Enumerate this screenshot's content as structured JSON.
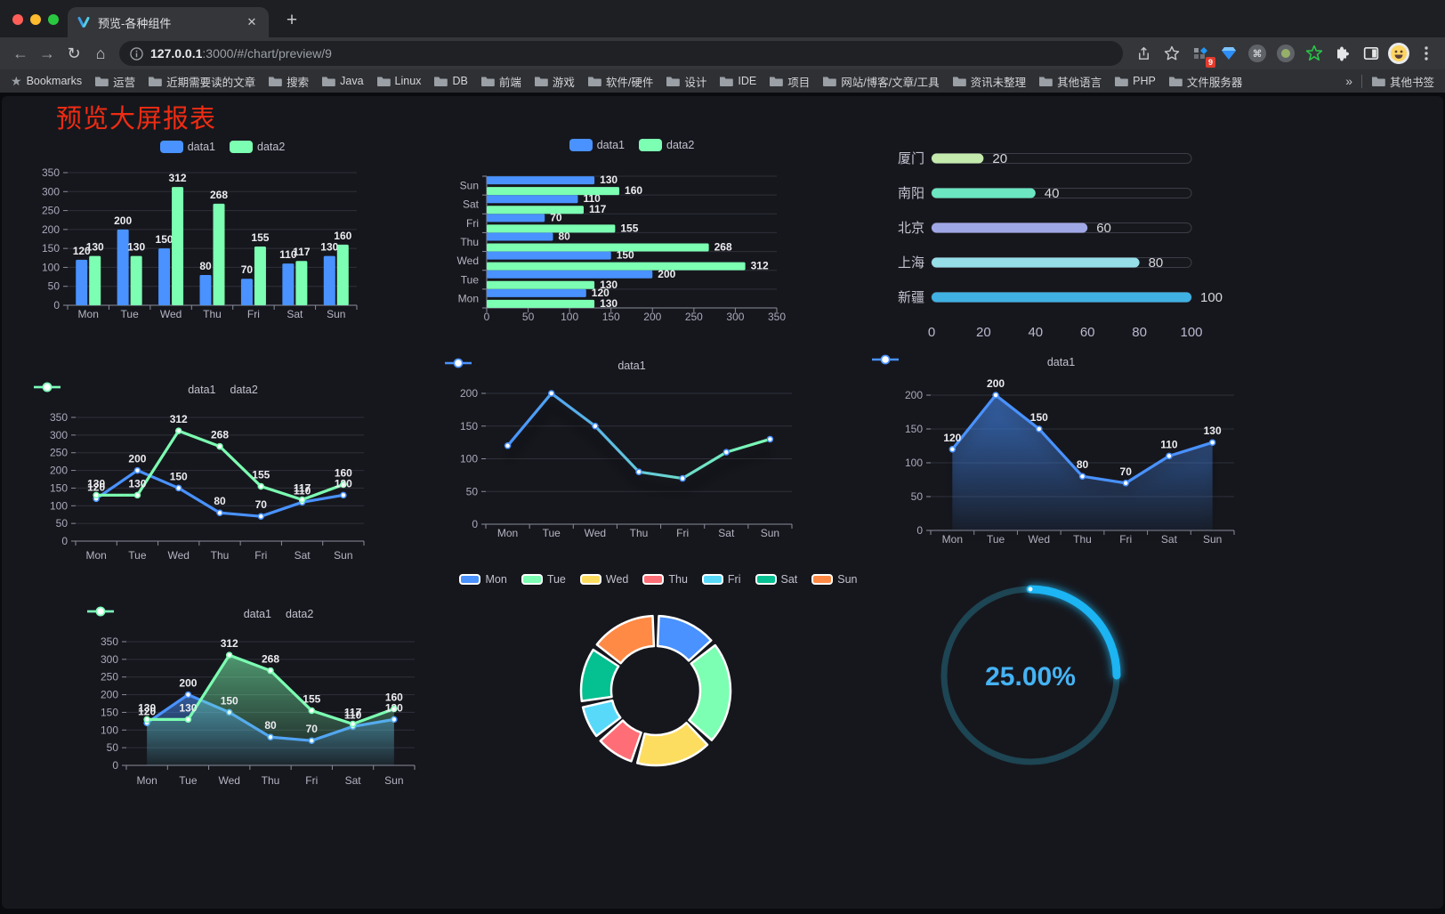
{
  "browser": {
    "tab_title": "预览-各种组件",
    "new_tab": "+",
    "close_tab": "✕",
    "url_host": "127.0.0.1",
    "url_rest": ":3000/#/chart/preview/9",
    "extension_badge": "9",
    "bookmarks_label": "Bookmarks",
    "bookmarks": [
      "运营",
      "近期需要读的文章",
      "搜索",
      "Java",
      "Linux",
      "DB",
      "前端",
      "游戏",
      "软件/硬件",
      "设计",
      "IDE",
      "项目",
      "网站/博客/文章/工具",
      "资讯未整理",
      "其他语言",
      "PHP",
      "文件服务器"
    ],
    "overflow_chevron": "»",
    "other_bookmarks": "其他书签"
  },
  "page": {
    "title": "预览大屏报表",
    "title_color": "#ef2c12",
    "background": "#16171d"
  },
  "chart_data": [
    {
      "id": "grouped-bar-vertical",
      "type": "bar",
      "categories": [
        "Mon",
        "Tue",
        "Wed",
        "Thu",
        "Fri",
        "Sat",
        "Sun"
      ],
      "series": [
        {
          "name": "data1",
          "color": "#4992ff",
          "values": [
            120,
            200,
            150,
            80,
            70,
            110,
            130
          ]
        },
        {
          "name": "data2",
          "color": "#7cffb2",
          "values": [
            130,
            130,
            312,
            268,
            155,
            117,
            160
          ]
        }
      ],
      "ylim": [
        0,
        350
      ],
      "yticks": [
        0,
        50,
        100,
        150,
        200,
        250,
        300,
        350
      ],
      "legend_position": "top",
      "grid": true,
      "labels": true
    },
    {
      "id": "grouped-bar-horizontal",
      "type": "bar-horizontal",
      "categories": [
        "Mon",
        "Tue",
        "Wed",
        "Thu",
        "Fri",
        "Sat",
        "Sun"
      ],
      "series": [
        {
          "name": "data1",
          "color": "#4992ff",
          "values": [
            120,
            200,
            150,
            80,
            70,
            110,
            130
          ]
        },
        {
          "name": "data2",
          "color": "#7cffb2",
          "values": [
            130,
            130,
            312,
            268,
            155,
            117,
            160
          ]
        }
      ],
      "xlim": [
        0,
        350
      ],
      "xticks": [
        0,
        50,
        100,
        150,
        200,
        250,
        300,
        350
      ],
      "legend_position": "top",
      "grid": true,
      "labels": true
    },
    {
      "id": "city-progress-bars",
      "type": "progress-bar",
      "categories": [
        "厦门",
        "南阳",
        "北京",
        "上海",
        "新疆"
      ],
      "values": [
        20,
        40,
        60,
        80,
        100
      ],
      "colors": [
        "#c4ebad",
        "#6be6c1",
        "#a0a7e6",
        "#96dee8",
        "#3fb1e3"
      ],
      "xlim": [
        0,
        100
      ],
      "xticks": [
        0,
        20,
        40,
        60,
        80,
        100
      ],
      "labels": true
    },
    {
      "id": "line-two-series",
      "type": "line",
      "categories": [
        "Mon",
        "Tue",
        "Wed",
        "Thu",
        "Fri",
        "Sat",
        "Sun"
      ],
      "series": [
        {
          "name": "data1",
          "color": "#4992ff",
          "values": [
            120,
            200,
            150,
            80,
            70,
            110,
            130
          ]
        },
        {
          "name": "data2",
          "color": "#7cffb2",
          "values": [
            130,
            130,
            312,
            268,
            155,
            117,
            160
          ]
        }
      ],
      "ylim": [
        0,
        350
      ],
      "yticks": [
        0,
        50,
        100,
        150,
        200,
        250,
        300,
        350
      ],
      "legend_position": "top",
      "labels": true,
      "shadow": false
    },
    {
      "id": "line-gradient",
      "type": "line",
      "categories": [
        "Mon",
        "Tue",
        "Wed",
        "Thu",
        "Fri",
        "Sat",
        "Sun"
      ],
      "series": [
        {
          "name": "data1",
          "color": "#4992ff",
          "gradient": [
            "#4992ff",
            "#7cffb2"
          ],
          "values": [
            120,
            200,
            150,
            80,
            70,
            110,
            130
          ]
        }
      ],
      "ylim": [
        0,
        200
      ],
      "yticks": [
        0,
        50,
        100,
        150,
        200
      ],
      "legend_position": "top",
      "labels": false,
      "shadow": true
    },
    {
      "id": "line-area",
      "type": "line",
      "categories": [
        "Mon",
        "Tue",
        "Wed",
        "Thu",
        "Fri",
        "Sat",
        "Sun"
      ],
      "series": [
        {
          "name": "data1",
          "color": "#4992ff",
          "area": true,
          "values": [
            120,
            200,
            150,
            80,
            70,
            110,
            130
          ]
        }
      ],
      "ylim": [
        0,
        200
      ],
      "yticks": [
        0,
        50,
        100,
        150,
        200
      ],
      "legend_position": "top",
      "labels": true,
      "shadow": true
    },
    {
      "id": "line-two-areas",
      "type": "line",
      "categories": [
        "Mon",
        "Tue",
        "Wed",
        "Thu",
        "Fri",
        "Sat",
        "Sun"
      ],
      "series": [
        {
          "name": "data1",
          "color": "#4992ff",
          "area": true,
          "values": [
            120,
            200,
            150,
            80,
            70,
            110,
            130
          ]
        },
        {
          "name": "data2",
          "color": "#7cffb2",
          "area": true,
          "values": [
            130,
            130,
            312,
            268,
            155,
            117,
            160
          ]
        }
      ],
      "ylim": [
        0,
        350
      ],
      "yticks": [
        0,
        50,
        100,
        150,
        200,
        250,
        300,
        350
      ],
      "legend_position": "top",
      "labels": true,
      "shadow": false
    },
    {
      "id": "donut-week",
      "type": "pie",
      "categories": [
        "Mon",
        "Tue",
        "Wed",
        "Thu",
        "Fri",
        "Sat",
        "Sun"
      ],
      "values": [
        120,
        200,
        150,
        80,
        70,
        110,
        130
      ],
      "colors": [
        "#4992ff",
        "#7cffb2",
        "#fddd60",
        "#ff6e76",
        "#58d9f9",
        "#05c091",
        "#ff8a45"
      ],
      "legend_position": "top",
      "inner_radius": 50,
      "outer_radius": 84
    },
    {
      "id": "gauge-percent",
      "type": "gauge",
      "percent": 25,
      "label": "25.00%",
      "color": "#1bb4f2",
      "track_color": "#1d4553",
      "text_color": "#45b3f4"
    }
  ]
}
